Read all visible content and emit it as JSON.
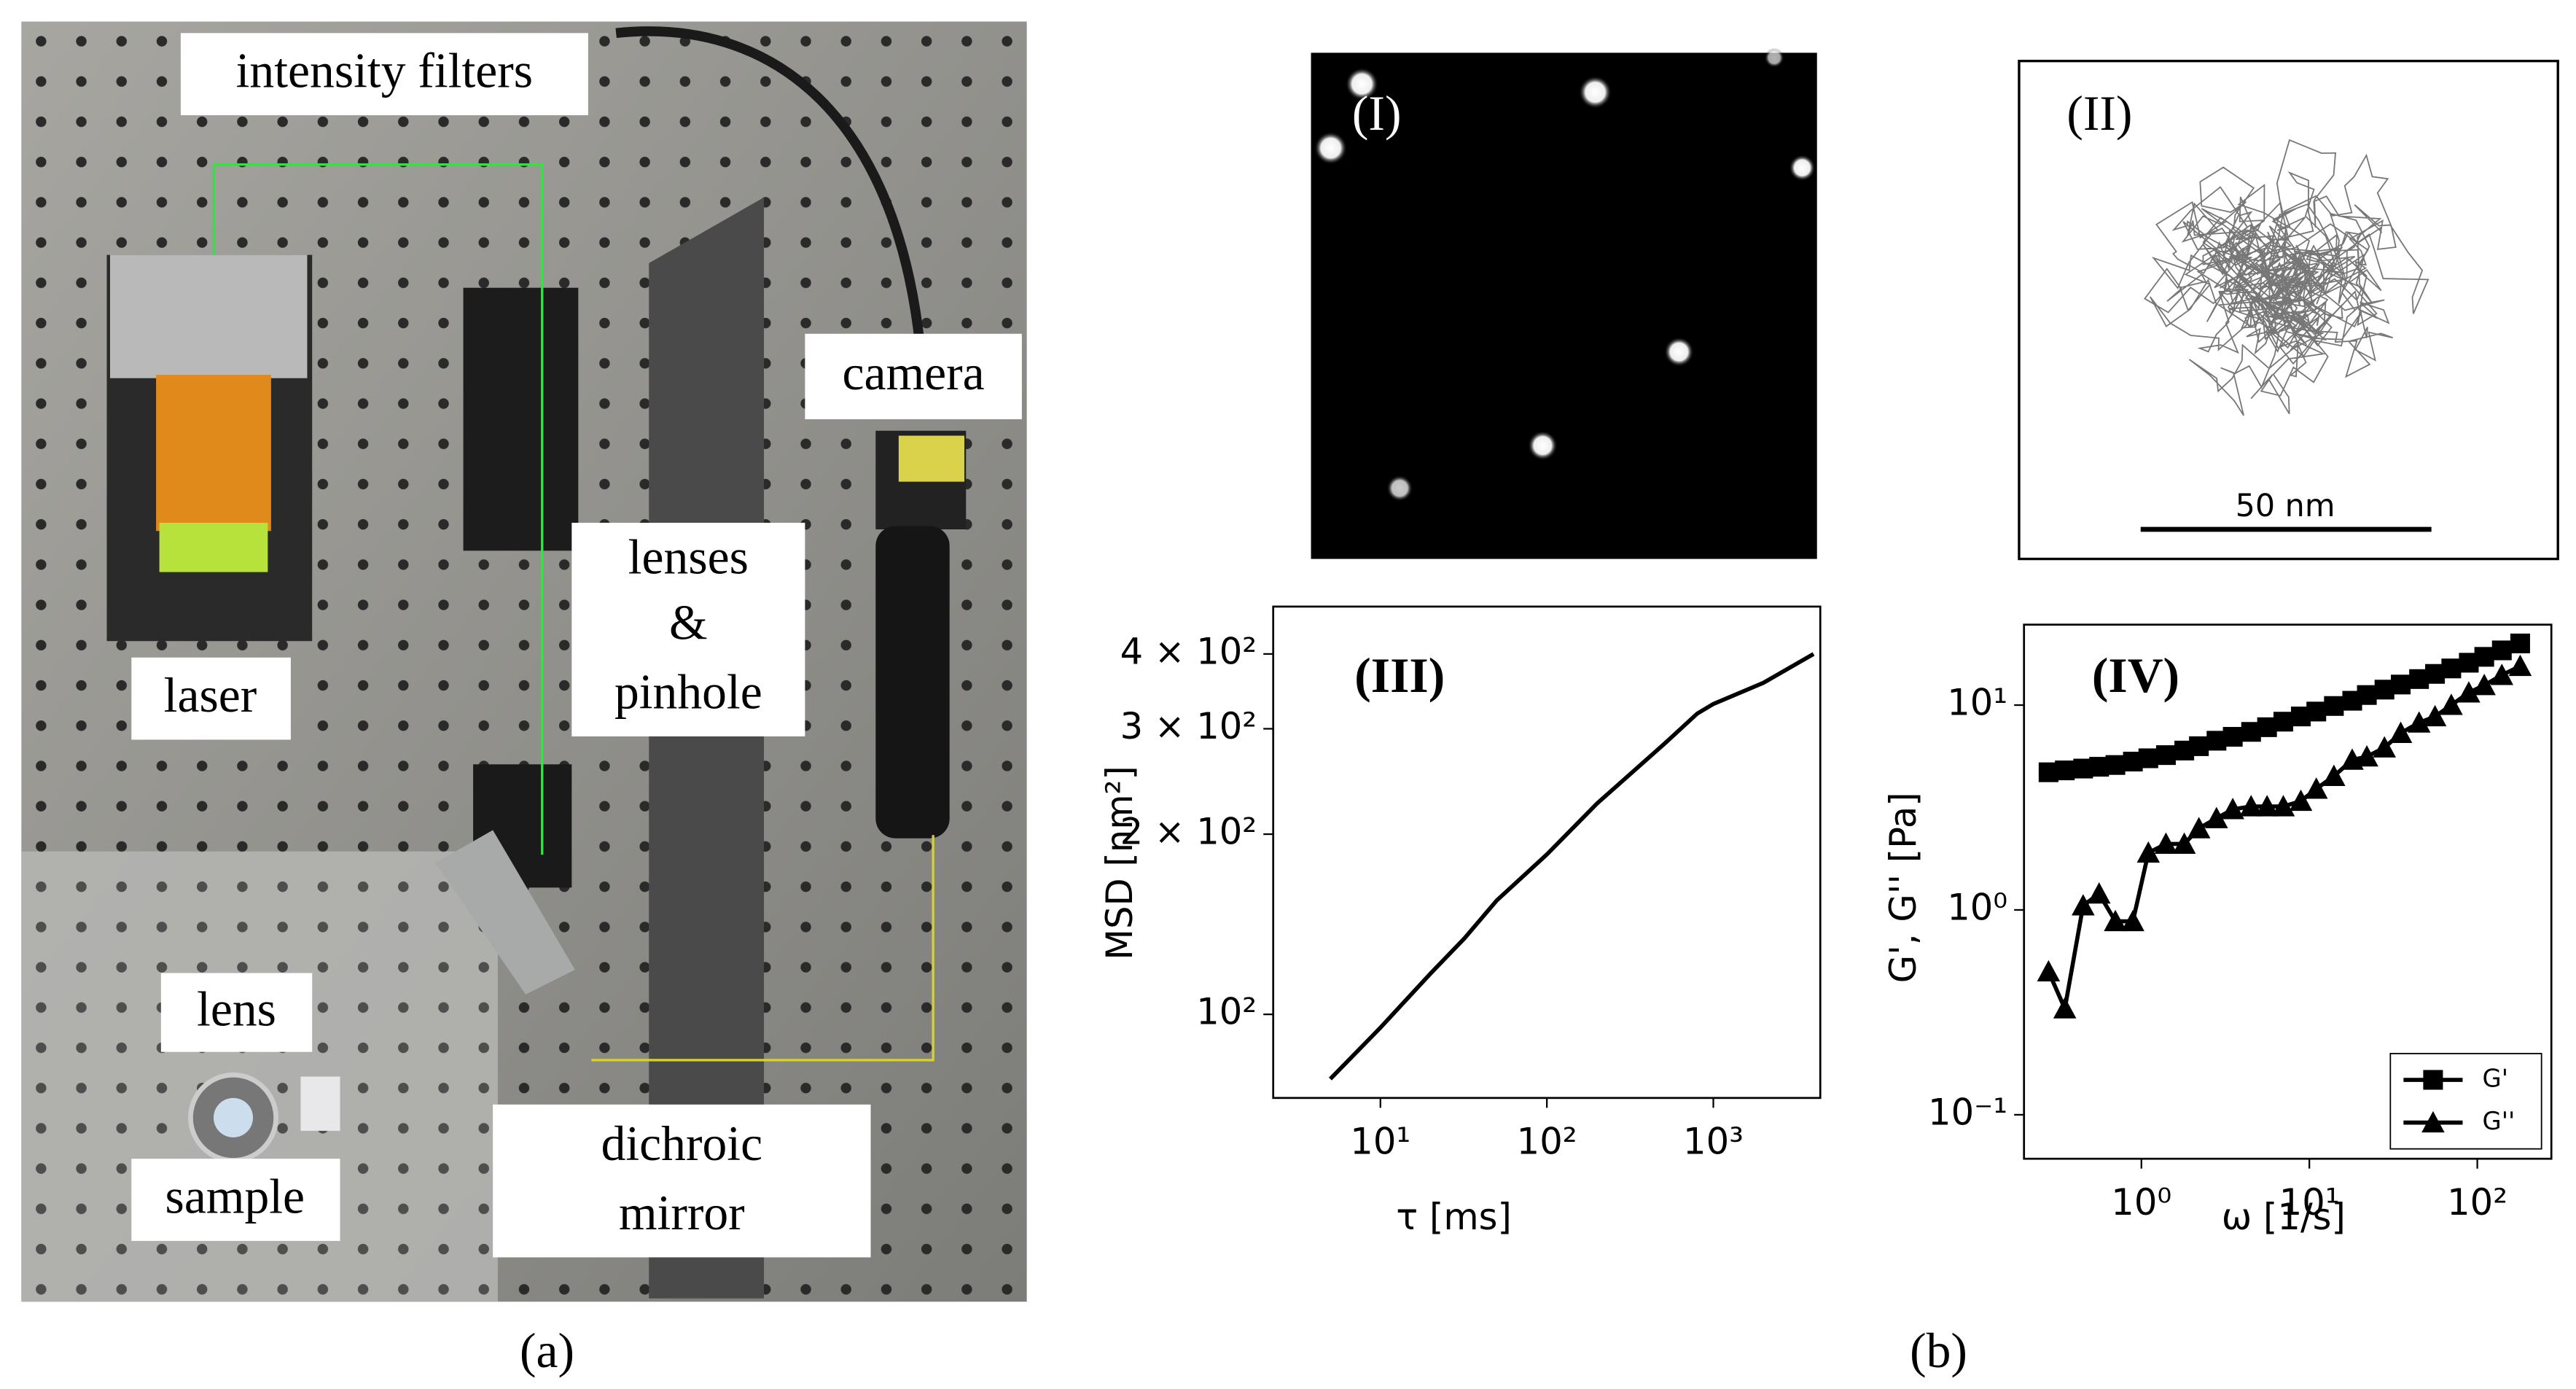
{
  "photo": {
    "labels": {
      "intensity_filters": "intensity filters",
      "camera": "camera",
      "lenses_pinhole": [
        "lenses",
        "&",
        "pinhole"
      ],
      "laser": "laser",
      "lens": "lens",
      "sample": "sample",
      "dichroic_mirror": [
        "dichroic",
        "mirror"
      ]
    },
    "caption": "(a)"
  },
  "panel_b": {
    "caption": "(b)",
    "image_label": "(I)",
    "trajectory_label": "(II)",
    "scale_bar": "50 nm"
  },
  "chart_data": [
    {
      "type": "line",
      "label": "(III)",
      "xlabel": "τ [ms]",
      "ylabel": "MSD [nm²]",
      "log_x": true,
      "log_y": true,
      "color": "#000000",
      "x": [
        5,
        10,
        20,
        32,
        50,
        100,
        200,
        500,
        800,
        1000,
        2000,
        4000
      ],
      "values": [
        78,
        95,
        117,
        134,
        155,
        185,
        225,
        282,
        318,
        330,
        358,
        400
      ],
      "xlim": [
        2.27,
        4390
      ],
      "ylim": [
        72.5,
        480
      ],
      "xticks": [
        {
          "value": 10,
          "label": "10¹"
        },
        {
          "value": 100,
          "label": "10²"
        },
        {
          "value": 1000,
          "label": "10³"
        }
      ],
      "yticks": [
        {
          "value": 100,
          "label": "10²"
        },
        {
          "value": 200,
          "label": "2 × 10²"
        },
        {
          "value": 300,
          "label": "3 × 10²"
        },
        {
          "value": 400,
          "label": "4 × 10²"
        }
      ]
    },
    {
      "type": "line",
      "label": "(IV)",
      "xlabel": "ω [1/s]",
      "ylabel": "G', G'' [Pa]",
      "log_x": true,
      "log_y": true,
      "legend": "lower right",
      "x": [
        0.28,
        0.35,
        0.45,
        0.56,
        0.7,
        0.89,
        1.1,
        1.4,
        1.8,
        2.2,
        2.8,
        3.5,
        4.5,
        5.6,
        7,
        8.9,
        11,
        14,
        18,
        22,
        28,
        35,
        45,
        56,
        70,
        89,
        110,
        140,
        180
      ],
      "series": [
        {
          "name": "G'",
          "color": "#000000",
          "marker": "square",
          "values": [
            4.7,
            4.8,
            4.9,
            5.0,
            5.1,
            5.3,
            5.5,
            5.7,
            6.0,
            6.3,
            6.7,
            7.0,
            7.4,
            7.8,
            8.3,
            8.8,
            9.3,
            9.9,
            10.5,
            11.2,
            11.9,
            12.6,
            13.4,
            14.2,
            15.1,
            16.1,
            17.2,
            18.5,
            20
          ]
        },
        {
          "name": "G''",
          "color": "#000000",
          "marker": "triangle",
          "values": [
            0.5,
            0.33,
            1.05,
            1.2,
            0.88,
            0.88,
            1.9,
            2.1,
            2.1,
            2.5,
            2.8,
            3.1,
            3.2,
            3.2,
            3.2,
            3.4,
            3.9,
            4.5,
            5.4,
            5.6,
            6.2,
            7.3,
            8.2,
            8.8,
            10,
            11.5,
            12.5,
            14,
            15.5
          ]
        }
      ],
      "xlim": [
        0.2,
        276
      ],
      "ylim": [
        0.061,
        24.7
      ],
      "xticks": [
        {
          "value": 1,
          "label": "10⁰"
        },
        {
          "value": 10,
          "label": "10¹"
        },
        {
          "value": 100,
          "label": "10²"
        }
      ],
      "yticks": [
        {
          "value": 0.1,
          "label": "10⁻¹"
        },
        {
          "value": 1,
          "label": "10⁰"
        },
        {
          "value": 10,
          "label": "10¹"
        }
      ]
    }
  ]
}
